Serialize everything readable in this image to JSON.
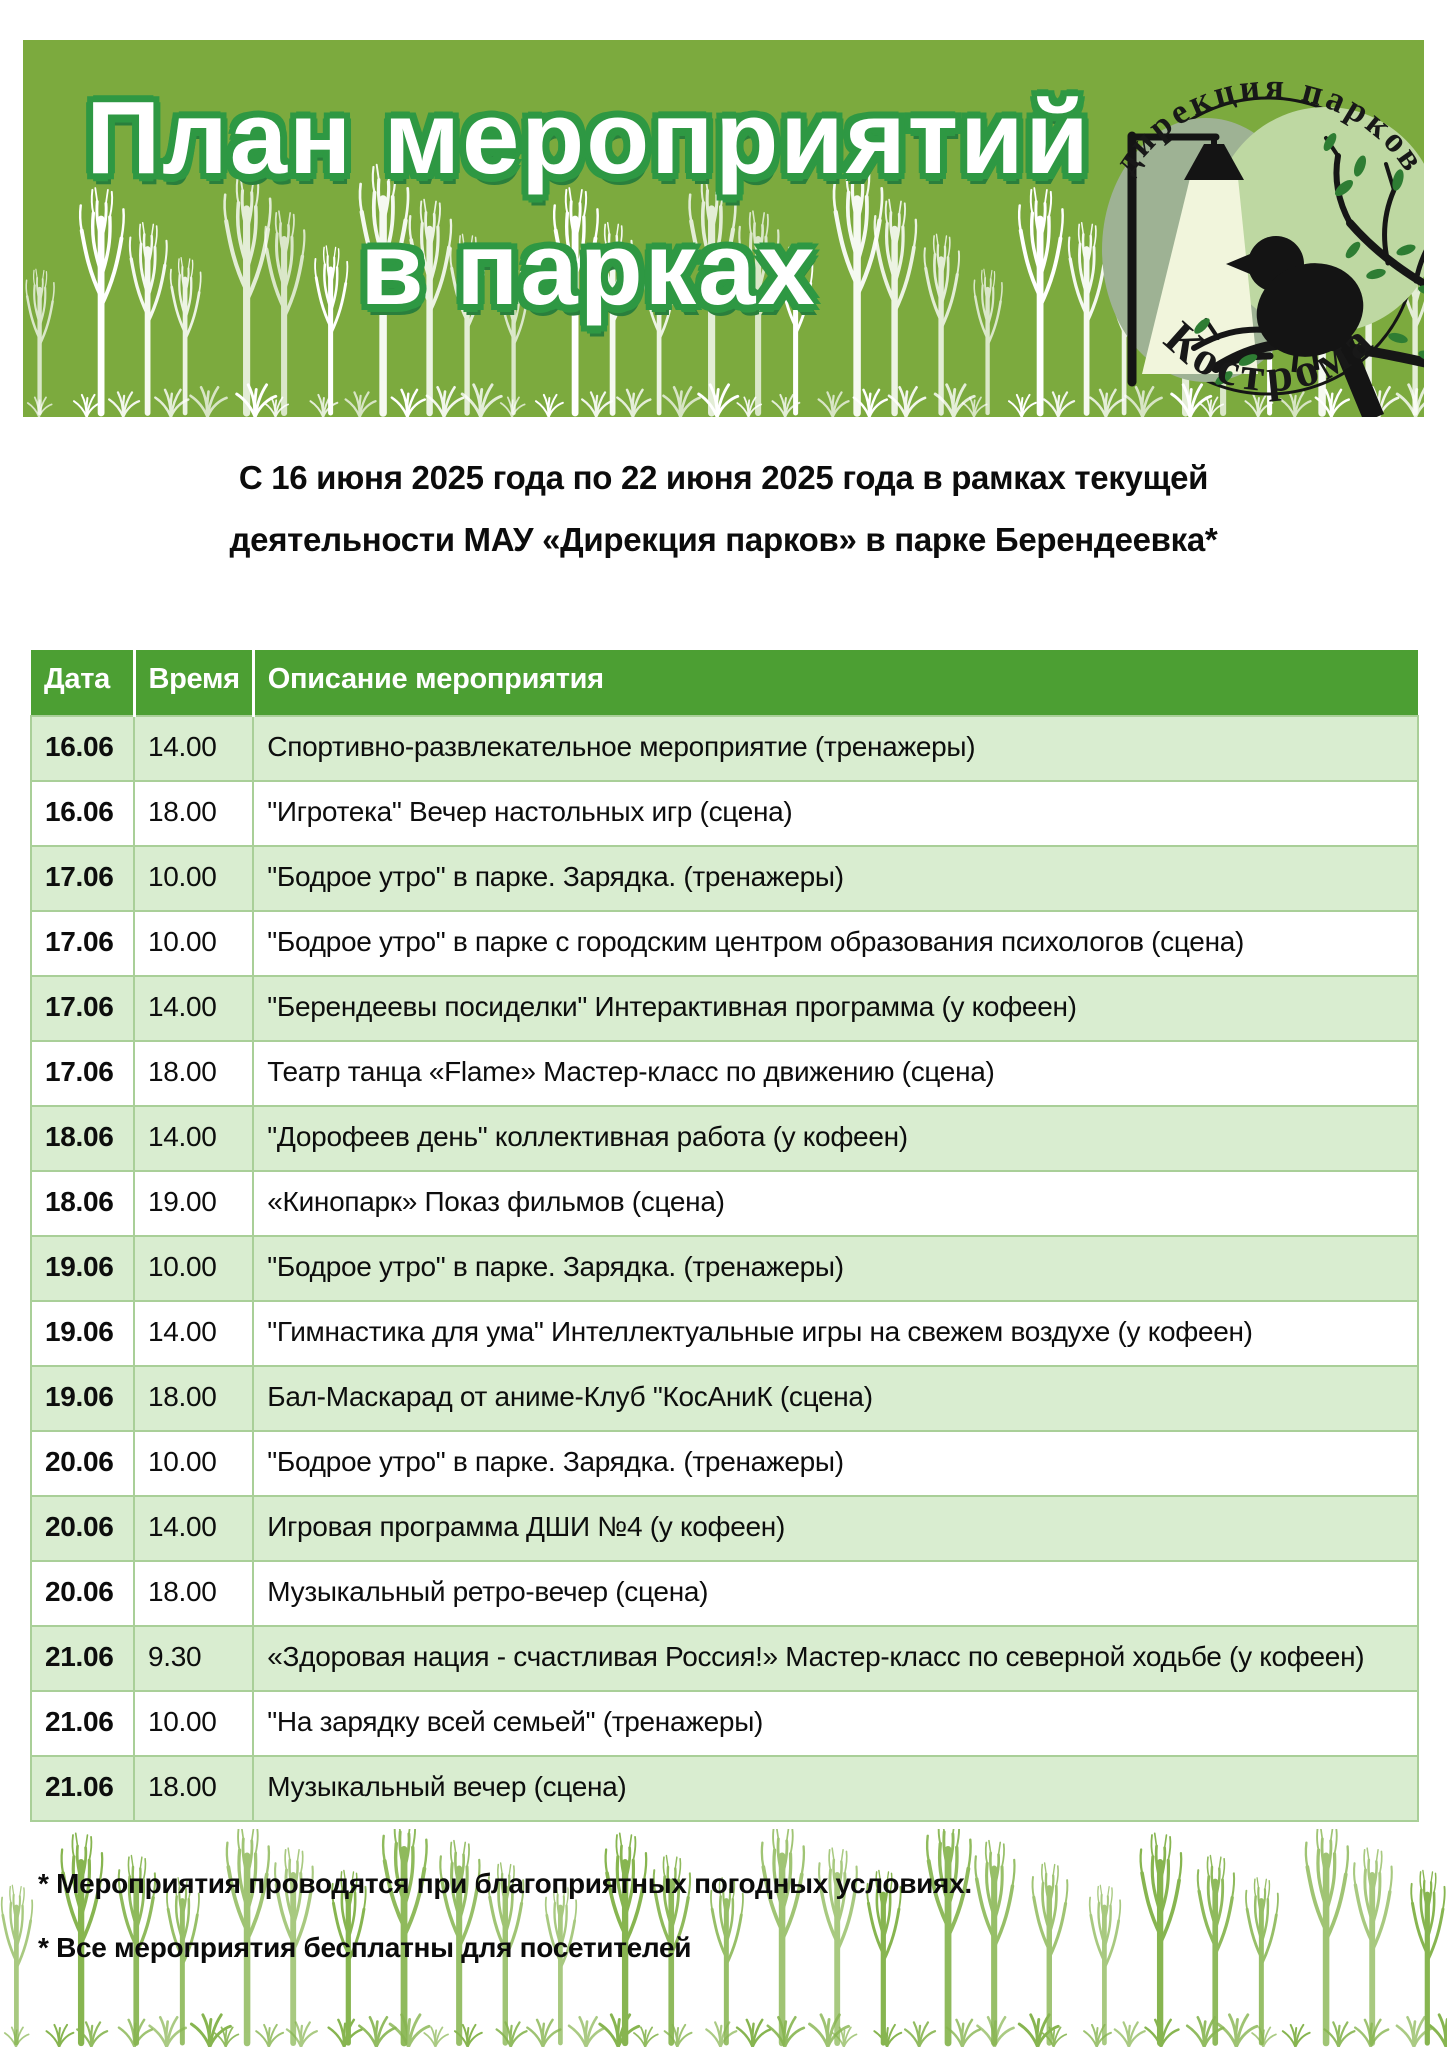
{
  "banner": {
    "title_line1": "План мероприятий",
    "title_line2": "в парках",
    "bg_color": "#7CAA3E",
    "title_fill": "#ffffff",
    "title_outline": "#2E9843"
  },
  "logo": {
    "top_text": "дирекция парков",
    "bottom_text": "Кострома"
  },
  "intro": {
    "line1": "С 16 июня 2025 года по 22 июня 2025 года в рамках текущей",
    "line2": "деятельности МАУ «Дирекция парков» в парке Берендеевка*"
  },
  "table": {
    "headers": [
      "Дата",
      "Время",
      "Описание мероприятия"
    ],
    "header_bg": "#4C9F33",
    "row_green": "#D9EDD0",
    "row_white": "#ffffff",
    "border_color": "#A9CF98",
    "rows": [
      {
        "date": "16.06",
        "time": "14.00",
        "desc": "Спортивно-развлекательное мероприятие (тренажеры)"
      },
      {
        "date": "16.06",
        "time": "18.00",
        "desc": "\"Игротека\" Вечер настольных игр (сцена)"
      },
      {
        "date": "17.06",
        "time": "10.00",
        "desc": "\"Бодрое утро\" в парке. Зарядка. (тренажеры)"
      },
      {
        "date": "17.06",
        "time": "10.00",
        "desc": "\"Бодрое утро\" в парке с городским центром образования психологов (сцена)"
      },
      {
        "date": "17.06",
        "time": "14.00",
        "desc": "\"Берендеевы посиделки\" Интерактивная программа (у кофеен)"
      },
      {
        "date": "17.06",
        "time": "18.00",
        "desc": "Театр танца «Flame» Мастер-класс по движению (сцена)"
      },
      {
        "date": "18.06",
        "time": "14.00",
        "desc": "\"Дорофеев день\" коллективная работа (у кофеен)"
      },
      {
        "date": "18.06",
        "time": "19.00",
        "desc": "«Кинопарк» Показ фильмов (сцена)"
      },
      {
        "date": "19.06",
        "time": "10.00",
        "desc": "\"Бодрое утро\" в парке. Зарядка. (тренажеры)"
      },
      {
        "date": "19.06",
        "time": "14.00",
        "desc": "\"Гимнастика для ума\" Интеллектуальные игры на свежем воздухе (у кофеен)"
      },
      {
        "date": "19.06",
        "time": "18.00",
        "desc": "Бал-Маскарад от аниме-Клуб \"КосАниК (сцена)"
      },
      {
        "date": "20.06",
        "time": "10.00",
        "desc": "\"Бодрое утро\" в парке. Зарядка. (тренажеры)"
      },
      {
        "date": "20.06",
        "time": "14.00",
        "desc": "Игровая программа ДШИ №4 (у кофеен)"
      },
      {
        "date": "20.06",
        "time": "18.00",
        "desc": "Музыкальный ретро-вечер (сцена)"
      },
      {
        "date": "21.06",
        "time": "9.30",
        "desc": "«Здоровая нация - счастливая Россия!» Мастер-класс по северной ходьбе (у кофеен)"
      },
      {
        "date": "21.06",
        "time": "10.00",
        "desc": "\"На зарядку всей семьей\" (тренажеры)"
      },
      {
        "date": "21.06",
        "time": "18.00",
        "desc": "Музыкальный вечер (сцена)"
      }
    ]
  },
  "footnotes": [
    "* Мероприятия проводятся при благоприятных погодных условиях.",
    "* Все мероприятия бесплатны для посетителей"
  ]
}
